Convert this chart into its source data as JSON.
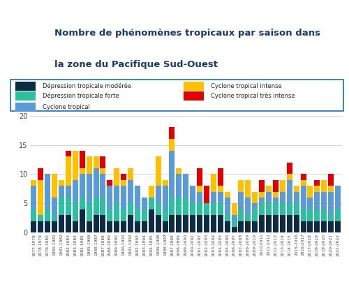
{
  "seasons": [
    "1977-1978",
    "1978-1979",
    "1979-1980",
    "1980-1981",
    "1981-1982",
    "1982-1983",
    "1983-1984",
    "1984-1985",
    "1985-1986",
    "1986-1987",
    "1987-1988",
    "1988-1989",
    "1989-1990",
    "1990-1991",
    "1991-1992",
    "1992-1993",
    "1993-1994",
    "1994-1995",
    "1995-1996",
    "1996-1997",
    "1997-1998",
    "1998-1999",
    "1999-2000",
    "2000-2001",
    "2001-2002",
    "2002-2003",
    "2003-2004",
    "2004-2005",
    "2005-2006",
    "2006-2007",
    "2007-2008",
    "2008-2009",
    "2009-2010",
    "2010-2011",
    "2011-2012",
    "2012-2013",
    "2013-2014",
    "2014-2015",
    "2015-2016",
    "2016-2017",
    "2017-2018",
    "2018-2019",
    "2019-2020",
    "2020-2021",
    "2021-2022"
  ],
  "depression_moderee": [
    2,
    2,
    2,
    2,
    3,
    3,
    2,
    4,
    2,
    3,
    3,
    2,
    2,
    2,
    3,
    2,
    2,
    4,
    3,
    2,
    3,
    3,
    3,
    3,
    3,
    3,
    3,
    3,
    2,
    1,
    2,
    2,
    2,
    3,
    3,
    3,
    3,
    3,
    3,
    2,
    2,
    2,
    2,
    2,
    2
  ],
  "depression_forte": [
    2,
    1,
    2,
    1,
    3,
    3,
    3,
    2,
    3,
    3,
    3,
    2,
    3,
    2,
    2,
    2,
    2,
    2,
    2,
    2,
    3,
    3,
    3,
    2,
    2,
    2,
    2,
    2,
    1,
    1,
    2,
    1,
    2,
    2,
    2,
    2,
    2,
    2,
    2,
    2,
    2,
    2,
    2,
    1,
    2
  ],
  "cyclone_tropical": [
    4,
    0,
    6,
    3,
    2,
    2,
    4,
    4,
    5,
    5,
    4,
    4,
    3,
    4,
    4,
    4,
    2,
    0,
    3,
    4,
    8,
    4,
    4,
    3,
    2,
    0,
    2,
    2,
    3,
    1,
    3,
    3,
    1,
    1,
    2,
    1,
    2,
    4,
    2,
    4,
    2,
    3,
    3,
    4,
    4
  ],
  "cyclone_intense": [
    1,
    6,
    0,
    4,
    1,
    5,
    5,
    1,
    3,
    2,
    1,
    0,
    3,
    1,
    2,
    0,
    0,
    2,
    5,
    1,
    2,
    1,
    0,
    0,
    1,
    0,
    3,
    1,
    1,
    2,
    2,
    3,
    2,
    1,
    1,
    1,
    2,
    1,
    1,
    1,
    2,
    1,
    2,
    1,
    0
  ],
  "cyclone_tres_intense": [
    0,
    2,
    0,
    0,
    0,
    1,
    0,
    3,
    0,
    0,
    2,
    1,
    0,
    1,
    0,
    0,
    0,
    0,
    0,
    0,
    2,
    0,
    0,
    0,
    3,
    3,
    0,
    3,
    0,
    0,
    0,
    0,
    0,
    2,
    0,
    2,
    0,
    2,
    0,
    1,
    0,
    1,
    0,
    2,
    0
  ],
  "colors": {
    "depression_moderee": "#0d2b45",
    "depression_forte": "#2dbfa0",
    "cyclone_tropical": "#5b9bd5",
    "cyclone_intense": "#ffc000",
    "cyclone_tres_intense": "#e00000"
  },
  "legend_labels": {
    "depression_moderee": "Dépression tropicale modérée",
    "depression_forte": "Dépression tropicale forte",
    "cyclone_tropical": "Cyclone tropical",
    "cyclone_intense": "Cyclone tropical intense",
    "cyclone_tres_intense": "Cyclone tropical très intense"
  },
  "title_line1": "Nombre de phénomènes tropicaux par saison dans",
  "title_line2": "la zone du Pacifique Sud-Ouest",
  "ylim": [
    0,
    20
  ],
  "yticks": [
    0,
    5,
    10,
    15,
    20
  ],
  "background_color": "#ffffff",
  "legend_box_color": "#1a6faf",
  "title_color": "#1a3a6b"
}
